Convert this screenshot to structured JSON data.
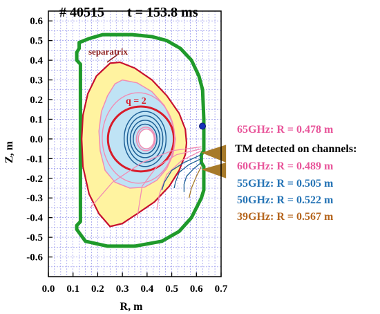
{
  "title": {
    "shot": "# 40515",
    "time": "t = 153.8 ms"
  },
  "axes": {
    "xlabel": "R, m",
    "ylabel": "Z, m",
    "xlim": [
      0.0,
      0.7
    ],
    "ylim": [
      -0.7,
      0.65
    ],
    "xticks": [
      "0.0",
      "0.1",
      "0.2",
      "0.3",
      "0.4",
      "0.5",
      "0.6",
      "0.7"
    ],
    "yticks": [
      "0.6",
      "0.5",
      "0.4",
      "0.3",
      "0.2",
      "0.1",
      "0.0",
      "-0.1",
      "-0.2",
      "-0.3",
      "-0.4",
      "-0.5",
      "-0.6"
    ]
  },
  "annotations": {
    "separatrix": "separatrix",
    "q2": "q = 2"
  },
  "legend": {
    "header": "TM detected on channels:",
    "entries": [
      {
        "text": "65GHz: R = 0.478 m",
        "color": "#e8559a"
      },
      {
        "text": "60GHz: R = 0.489 m",
        "color": "#e8559a"
      },
      {
        "text": "55GHz: R = 0.505 m",
        "color": "#2473b5"
      },
      {
        "text": "50GHz: R = 0.522 m",
        "color": "#2473b5"
      },
      {
        "text": "39GHz: R = 0.567 m",
        "color": "#b5651d"
      }
    ]
  },
  "colors": {
    "wall": "#1f9a2b",
    "separatrix": "#c8102e",
    "plasma_fill": "#fff3a0",
    "core_fill": "#bfe3f5",
    "q2_surface": "#d81c2a",
    "inner_surfaces": "#1d5f96",
    "pink_surfaces": "#f28cb3",
    "probe": "#1530b8",
    "antenna": "#a77a2a",
    "grid": "#8080e8"
  }
}
